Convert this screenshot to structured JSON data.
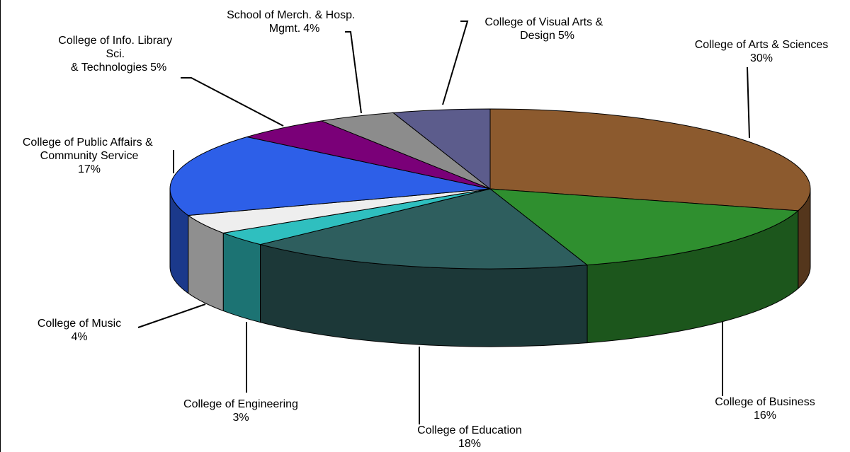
{
  "chart_data": {
    "type": "pie",
    "categories": [
      "College of Arts & Sciences",
      "College of Business",
      "College of Education",
      "College of Engineering",
      "College of Music",
      "College of Public Affairs & Community Service",
      "College of  Info. Library Sci. & Technologies",
      "School of Merch. & Hosp. Mgmt.",
      "College of Visual Arts & Design"
    ],
    "values": [
      30,
      16,
      18,
      3,
      4,
      17,
      5,
      4,
      5
    ],
    "value_labels": [
      "30%",
      "16%",
      "18%",
      "3%",
      "4%",
      "17%",
      "5%",
      "4%",
      "5%"
    ],
    "colors": [
      "#8c5a2e",
      "#2f8f2f",
      "#2e5e5e",
      "#2fbfbf",
      "#eeeeee",
      "#2d5fe8",
      "#7a0078",
      "#8c8c8c",
      "#5c5c8c"
    ]
  }
}
